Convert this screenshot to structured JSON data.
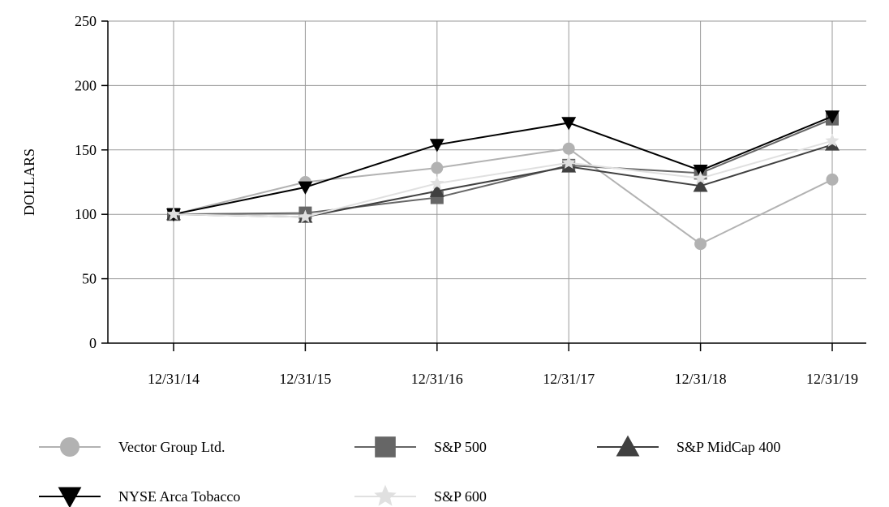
{
  "chart_data": {
    "type": "line",
    "title": "",
    "xlabel": "",
    "ylabel": "DOLLARS",
    "categories": [
      "12/31/14",
      "12/31/15",
      "12/31/16",
      "12/31/17",
      "12/31/18",
      "12/31/19"
    ],
    "ylim": [
      0,
      250
    ],
    "yticks": [
      0,
      50,
      100,
      150,
      200,
      250
    ],
    "grid": true,
    "legend_position": "bottom",
    "series": [
      {
        "name": "Vector Group Ltd.",
        "values": [
          100,
          125,
          136,
          151,
          77,
          127
        ],
        "color": "#b2b2b2",
        "marker": "circle"
      },
      {
        "name": "S&P 500",
        "values": [
          100,
          101,
          113,
          138,
          132,
          174
        ],
        "color": "#666666",
        "marker": "square"
      },
      {
        "name": "S&P MidCap 400",
        "values": [
          100,
          98,
          118,
          137,
          122,
          154
        ],
        "color": "#404040",
        "marker": "triangle-up"
      },
      {
        "name": "NYSE Arca Tobacco",
        "values": [
          100,
          121,
          154,
          171,
          134,
          176
        ],
        "color": "#000000",
        "marker": "triangle-down"
      },
      {
        "name": "S&P 600",
        "values": [
          100,
          98,
          124,
          140,
          128,
          157
        ],
        "color": "#e0e0e0",
        "marker": "star"
      }
    ]
  }
}
